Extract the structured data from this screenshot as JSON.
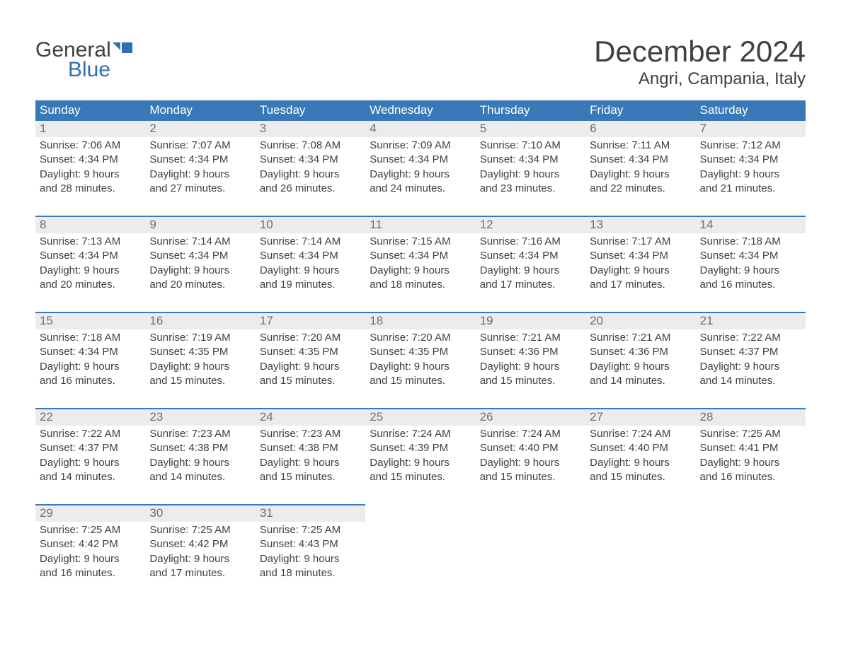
{
  "logo": {
    "top": "General",
    "bottom": "Blue",
    "icon_color": "#2f6fb0"
  },
  "title": "December 2024",
  "subtitle": "Angri, Campania, Italy",
  "colors": {
    "header_bg": "#3a79b7",
    "header_text": "#ffffff",
    "daynum_bg": "#ececec",
    "daynum_text": "#6e6e6e",
    "body_text": "#3f3f3f",
    "page_bg": "#ffffff"
  },
  "day_headers": [
    "Sunday",
    "Monday",
    "Tuesday",
    "Wednesday",
    "Thursday",
    "Friday",
    "Saturday"
  ],
  "weeks": [
    [
      {
        "n": 1,
        "sr": "7:06 AM",
        "ss": "4:34 PM",
        "dh": 9,
        "dm": 28
      },
      {
        "n": 2,
        "sr": "7:07 AM",
        "ss": "4:34 PM",
        "dh": 9,
        "dm": 27
      },
      {
        "n": 3,
        "sr": "7:08 AM",
        "ss": "4:34 PM",
        "dh": 9,
        "dm": 26
      },
      {
        "n": 4,
        "sr": "7:09 AM",
        "ss": "4:34 PM",
        "dh": 9,
        "dm": 24
      },
      {
        "n": 5,
        "sr": "7:10 AM",
        "ss": "4:34 PM",
        "dh": 9,
        "dm": 23
      },
      {
        "n": 6,
        "sr": "7:11 AM",
        "ss": "4:34 PM",
        "dh": 9,
        "dm": 22
      },
      {
        "n": 7,
        "sr": "7:12 AM",
        "ss": "4:34 PM",
        "dh": 9,
        "dm": 21
      }
    ],
    [
      {
        "n": 8,
        "sr": "7:13 AM",
        "ss": "4:34 PM",
        "dh": 9,
        "dm": 20
      },
      {
        "n": 9,
        "sr": "7:14 AM",
        "ss": "4:34 PM",
        "dh": 9,
        "dm": 20
      },
      {
        "n": 10,
        "sr": "7:14 AM",
        "ss": "4:34 PM",
        "dh": 9,
        "dm": 19
      },
      {
        "n": 11,
        "sr": "7:15 AM",
        "ss": "4:34 PM",
        "dh": 9,
        "dm": 18
      },
      {
        "n": 12,
        "sr": "7:16 AM",
        "ss": "4:34 PM",
        "dh": 9,
        "dm": 17
      },
      {
        "n": 13,
        "sr": "7:17 AM",
        "ss": "4:34 PM",
        "dh": 9,
        "dm": 17
      },
      {
        "n": 14,
        "sr": "7:18 AM",
        "ss": "4:34 PM",
        "dh": 9,
        "dm": 16
      }
    ],
    [
      {
        "n": 15,
        "sr": "7:18 AM",
        "ss": "4:34 PM",
        "dh": 9,
        "dm": 16
      },
      {
        "n": 16,
        "sr": "7:19 AM",
        "ss": "4:35 PM",
        "dh": 9,
        "dm": 15
      },
      {
        "n": 17,
        "sr": "7:20 AM",
        "ss": "4:35 PM",
        "dh": 9,
        "dm": 15
      },
      {
        "n": 18,
        "sr": "7:20 AM",
        "ss": "4:35 PM",
        "dh": 9,
        "dm": 15
      },
      {
        "n": 19,
        "sr": "7:21 AM",
        "ss": "4:36 PM",
        "dh": 9,
        "dm": 15
      },
      {
        "n": 20,
        "sr": "7:21 AM",
        "ss": "4:36 PM",
        "dh": 9,
        "dm": 14
      },
      {
        "n": 21,
        "sr": "7:22 AM",
        "ss": "4:37 PM",
        "dh": 9,
        "dm": 14
      }
    ],
    [
      {
        "n": 22,
        "sr": "7:22 AM",
        "ss": "4:37 PM",
        "dh": 9,
        "dm": 14
      },
      {
        "n": 23,
        "sr": "7:23 AM",
        "ss": "4:38 PM",
        "dh": 9,
        "dm": 14
      },
      {
        "n": 24,
        "sr": "7:23 AM",
        "ss": "4:38 PM",
        "dh": 9,
        "dm": 15
      },
      {
        "n": 25,
        "sr": "7:24 AM",
        "ss": "4:39 PM",
        "dh": 9,
        "dm": 15
      },
      {
        "n": 26,
        "sr": "7:24 AM",
        "ss": "4:40 PM",
        "dh": 9,
        "dm": 15
      },
      {
        "n": 27,
        "sr": "7:24 AM",
        "ss": "4:40 PM",
        "dh": 9,
        "dm": 15
      },
      {
        "n": 28,
        "sr": "7:25 AM",
        "ss": "4:41 PM",
        "dh": 9,
        "dm": 16
      }
    ],
    [
      {
        "n": 29,
        "sr": "7:25 AM",
        "ss": "4:42 PM",
        "dh": 9,
        "dm": 16
      },
      {
        "n": 30,
        "sr": "7:25 AM",
        "ss": "4:42 PM",
        "dh": 9,
        "dm": 17
      },
      {
        "n": 31,
        "sr": "7:25 AM",
        "ss": "4:43 PM",
        "dh": 9,
        "dm": 18
      },
      null,
      null,
      null,
      null
    ]
  ],
  "labels": {
    "sunrise": "Sunrise:",
    "sunset": "Sunset:",
    "daylight_prefix": "Daylight:",
    "hours_word": "hours",
    "and_word": "and",
    "minutes_word": "minutes."
  }
}
